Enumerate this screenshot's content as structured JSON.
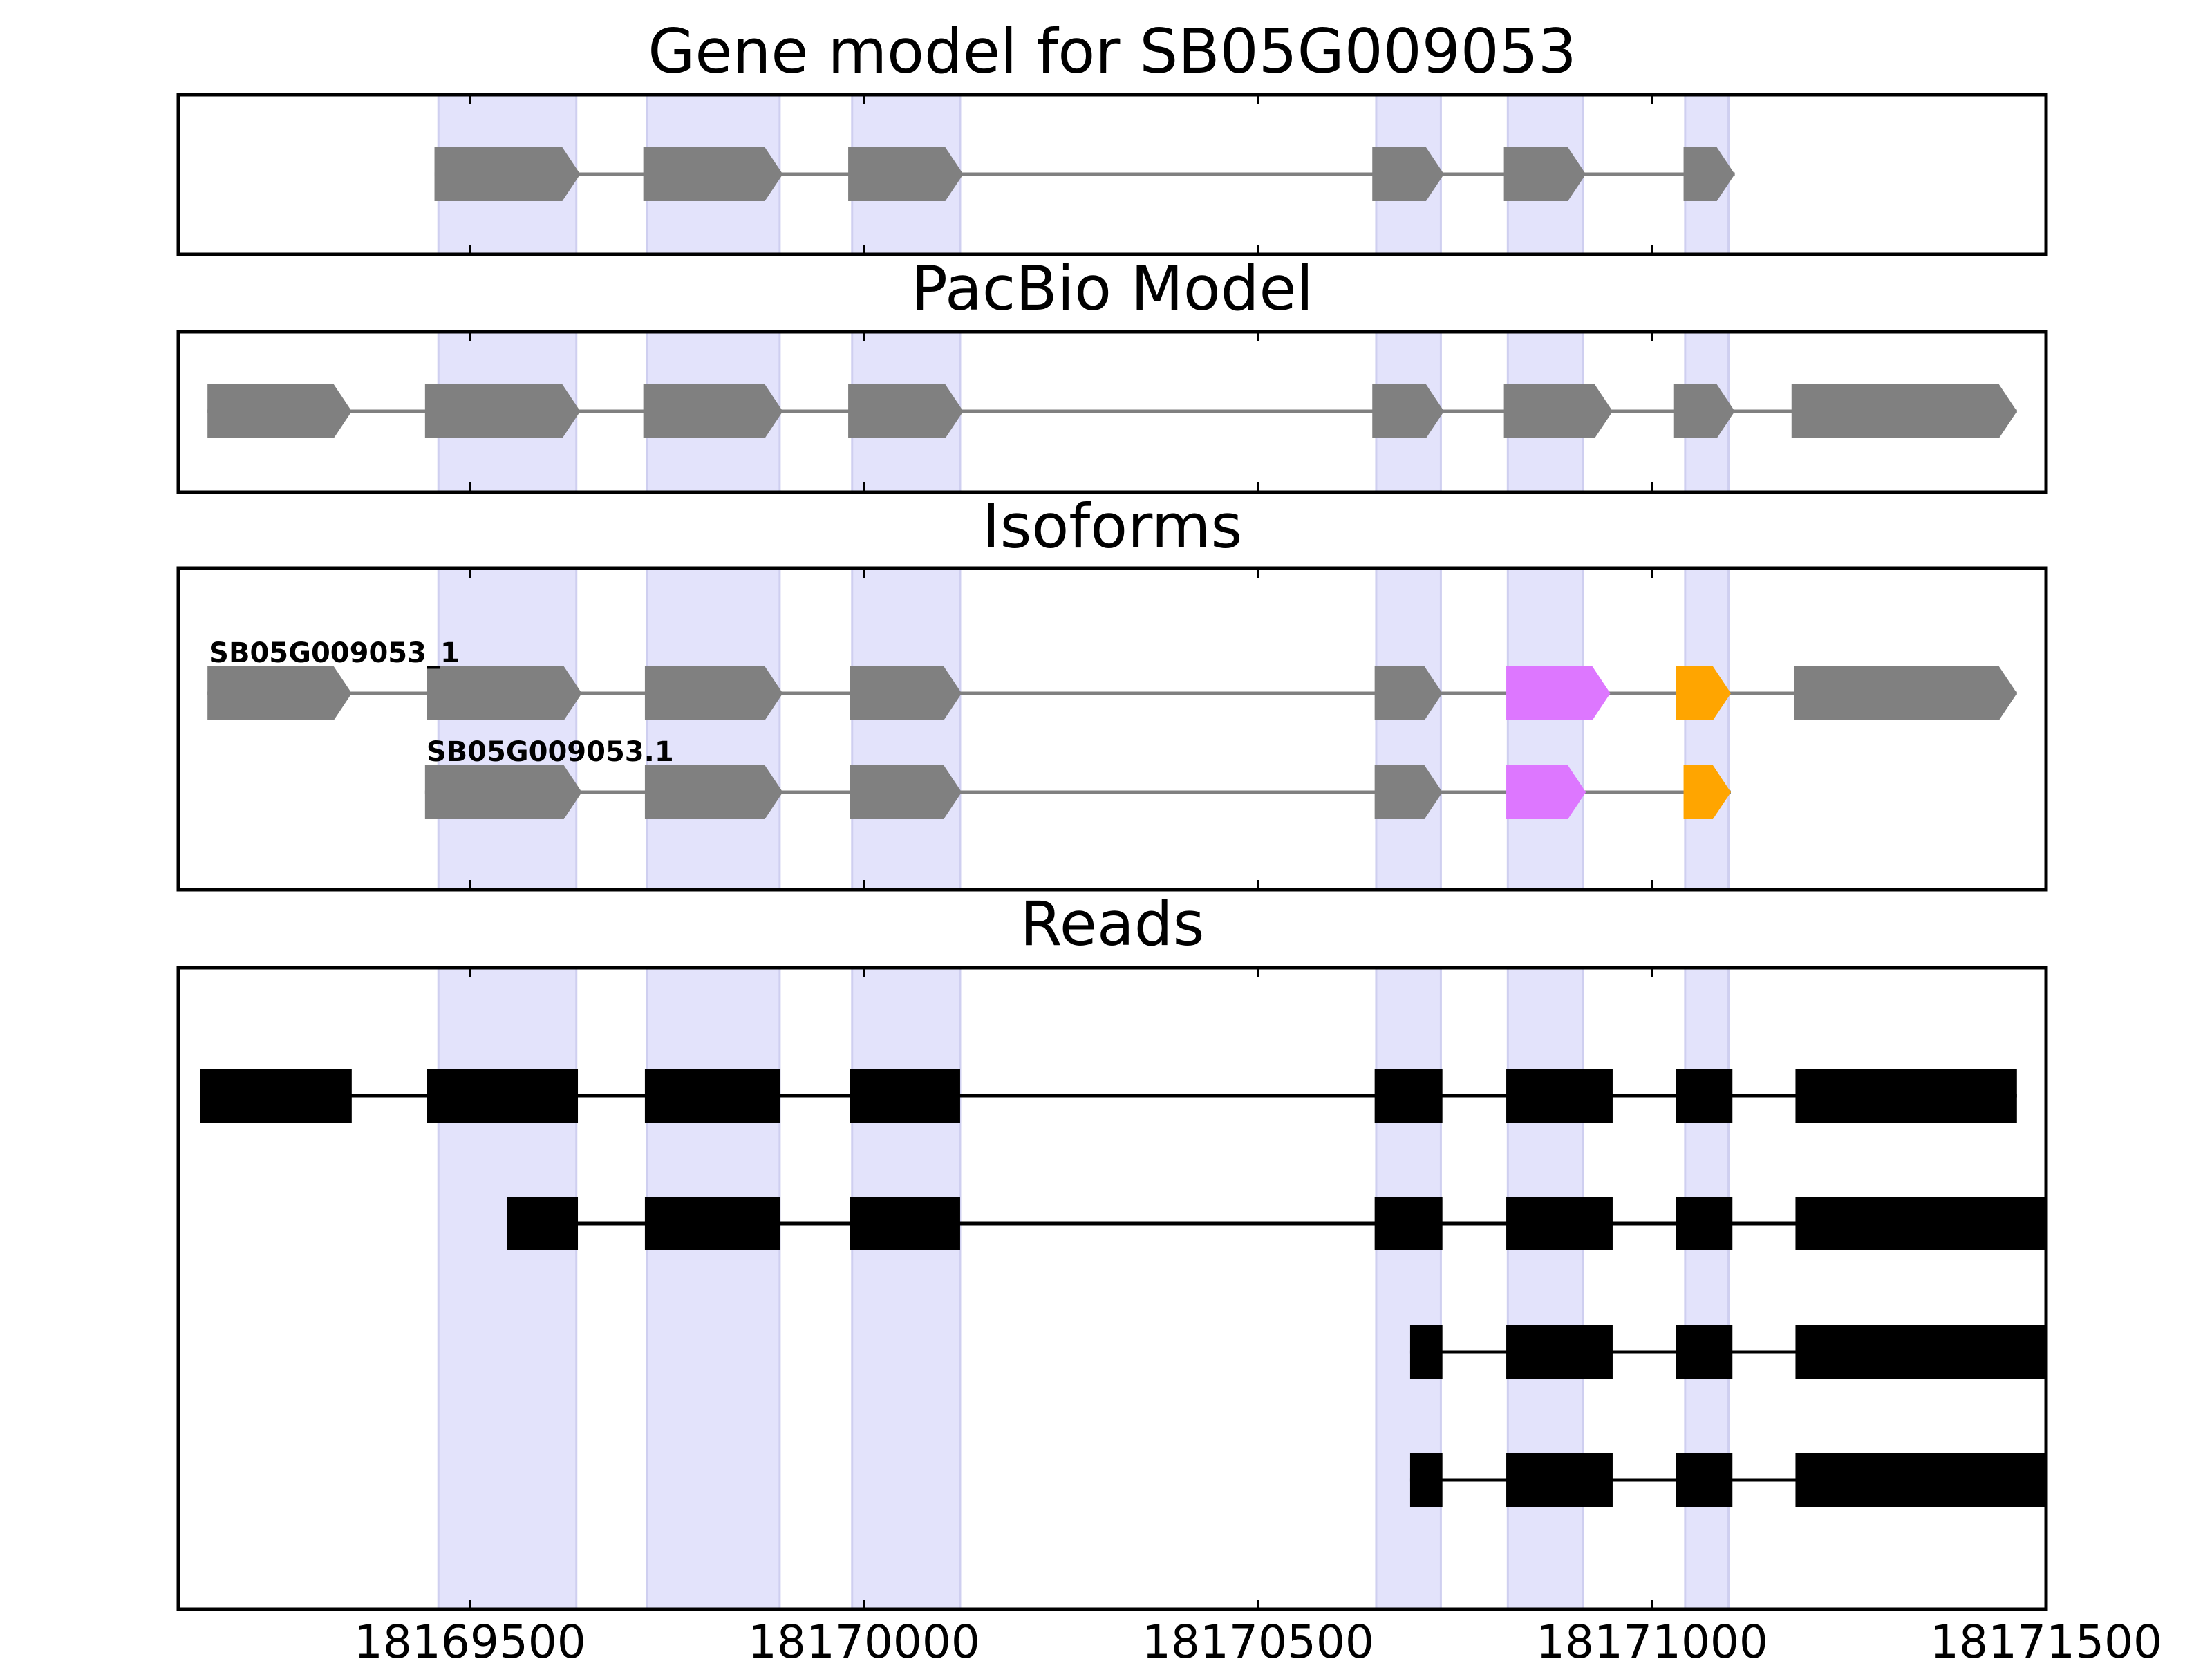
{
  "chart_data": {
    "type": "gene-structure",
    "xlim": [
      18169130,
      18171500
    ],
    "x_ticks": [
      18169500,
      18170000,
      18170500,
      18171000,
      18171500
    ],
    "highlight_regions": [
      [
        18169460,
        18169635
      ],
      [
        18169725,
        18169893
      ],
      [
        18169985,
        18170122
      ],
      [
        18170650,
        18170732
      ],
      [
        18170817,
        18170912
      ],
      [
        18171042,
        18171097
      ]
    ],
    "colors": {
      "frame": "#000000",
      "highlight": "#e3e3fb",
      "highlight_edge": "#cfcff0",
      "exon": "#808080",
      "intron": "#808080",
      "read": "#000000",
      "exon_alt_magenta": "#dd77ff",
      "exon_alt_orange": "#ffa500"
    },
    "panels": [
      {
        "id": "gene-model",
        "title": "Gene model for SB05G009053",
        "tracks": [
          {
            "label": "",
            "style": "arrow",
            "exons": [
              {
                "start": 18169455,
                "end": 18169640
              },
              {
                "start": 18169720,
                "end": 18169897
              },
              {
                "start": 18169980,
                "end": 18170126
              },
              {
                "start": 18170645,
                "end": 18170736
              },
              {
                "start": 18170812,
                "end": 18170916
              },
              {
                "start": 18171040,
                "end": 18171105
              }
            ]
          }
        ]
      },
      {
        "id": "pacbio-model",
        "title": "PacBio Model",
        "tracks": [
          {
            "label": "",
            "style": "arrow",
            "exons": [
              {
                "start": 18169167,
                "end": 18169350
              },
              {
                "start": 18169443,
                "end": 18169640
              },
              {
                "start": 18169720,
                "end": 18169897
              },
              {
                "start": 18169980,
                "end": 18170126
              },
              {
                "start": 18170645,
                "end": 18170736
              },
              {
                "start": 18170812,
                "end": 18170950
              },
              {
                "start": 18171027,
                "end": 18171105
              },
              {
                "start": 18171177,
                "end": 18171463
              }
            ]
          }
        ]
      },
      {
        "id": "isoforms",
        "title": "Isoforms",
        "tracks": [
          {
            "label": "SB05G009053_1",
            "style": "arrow",
            "exons": [
              {
                "start": 18169167,
                "end": 18169350
              },
              {
                "start": 18169445,
                "end": 18169642
              },
              {
                "start": 18169722,
                "end": 18169897
              },
              {
                "start": 18169982,
                "end": 18170124
              },
              {
                "start": 18170648,
                "end": 18170734
              },
              {
                "start": 18170815,
                "end": 18170947,
                "color": "magenta"
              },
              {
                "start": 18171030,
                "end": 18171100,
                "color": "orange"
              },
              {
                "start": 18171180,
                "end": 18171463
              }
            ]
          },
          {
            "label": "SB05G009053.1",
            "style": "arrow",
            "exons": [
              {
                "start": 18169443,
                "end": 18169642
              },
              {
                "start": 18169722,
                "end": 18169897
              },
              {
                "start": 18169982,
                "end": 18170124
              },
              {
                "start": 18170648,
                "end": 18170734
              },
              {
                "start": 18170815,
                "end": 18170916,
                "color": "magenta"
              },
              {
                "start": 18171040,
                "end": 18171100,
                "color": "orange"
              }
            ]
          }
        ]
      },
      {
        "id": "reads",
        "title": "Reads",
        "tracks": [
          {
            "label": "",
            "style": "rect",
            "exons": [
              {
                "start": 18169158,
                "end": 18169350
              },
              {
                "start": 18169445,
                "end": 18169637
              },
              {
                "start": 18169722,
                "end": 18169894
              },
              {
                "start": 18169982,
                "end": 18170122
              },
              {
                "start": 18170648,
                "end": 18170734
              },
              {
                "start": 18170815,
                "end": 18170950
              },
              {
                "start": 18171030,
                "end": 18171102
              },
              {
                "start": 18171182,
                "end": 18171463
              }
            ]
          },
          {
            "label": "",
            "style": "rect",
            "exons": [
              {
                "start": 18169547,
                "end": 18169637
              },
              {
                "start": 18169722,
                "end": 18169894
              },
              {
                "start": 18169982,
                "end": 18170122
              },
              {
                "start": 18170648,
                "end": 18170734
              },
              {
                "start": 18170815,
                "end": 18170950
              },
              {
                "start": 18171030,
                "end": 18171102
              },
              {
                "start": 18171182,
                "end": 18171500
              }
            ]
          },
          {
            "label": "",
            "style": "rect",
            "exons": [
              {
                "start": 18170693,
                "end": 18170734
              },
              {
                "start": 18170815,
                "end": 18170950
              },
              {
                "start": 18171030,
                "end": 18171102
              },
              {
                "start": 18171182,
                "end": 18171500
              }
            ]
          },
          {
            "label": "",
            "style": "rect",
            "exons": [
              {
                "start": 18170693,
                "end": 18170734
              },
              {
                "start": 18170815,
                "end": 18170950
              },
              {
                "start": 18171030,
                "end": 18171102
              },
              {
                "start": 18171182,
                "end": 18171500
              }
            ]
          }
        ]
      }
    ]
  }
}
